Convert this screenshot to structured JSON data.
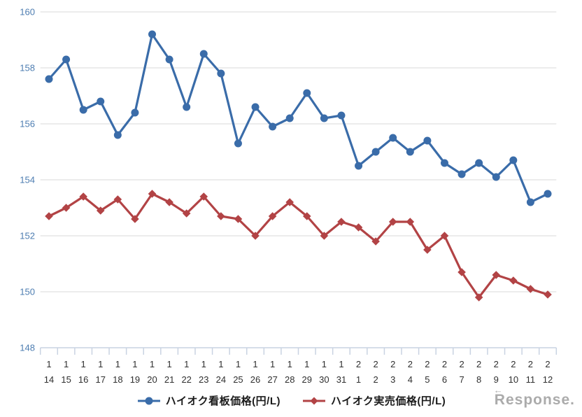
{
  "watermark": {
    "text": "Response.",
    "arrow_glyph": "←",
    "color": "#ababab"
  },
  "chart_data": {
    "type": "line",
    "title": "",
    "xlabel": "",
    "ylabel": "",
    "ylim": [
      148,
      160
    ],
    "y_ticks": [
      148,
      150,
      152,
      154,
      156,
      158,
      160
    ],
    "grid": "horizontal-only",
    "legend_position": "bottom",
    "axis_colors": {
      "y_label": "#4d7db1",
      "x_label": "#2f2f2f",
      "gridline": "#d9d9d9",
      "axis_line": "#c9d3e2"
    },
    "categories": [
      {
        "month": "1",
        "day": "14"
      },
      {
        "month": "1",
        "day": "15"
      },
      {
        "month": "1",
        "day": "16"
      },
      {
        "month": "1",
        "day": "17"
      },
      {
        "month": "1",
        "day": "18"
      },
      {
        "month": "1",
        "day": "19"
      },
      {
        "month": "1",
        "day": "20"
      },
      {
        "month": "1",
        "day": "21"
      },
      {
        "month": "1",
        "day": "22"
      },
      {
        "month": "1",
        "day": "23"
      },
      {
        "month": "1",
        "day": "24"
      },
      {
        "month": "1",
        "day": "25"
      },
      {
        "month": "1",
        "day": "26"
      },
      {
        "month": "1",
        "day": "27"
      },
      {
        "month": "1",
        "day": "28"
      },
      {
        "month": "1",
        "day": "29"
      },
      {
        "month": "1",
        "day": "30"
      },
      {
        "month": "1",
        "day": "31"
      },
      {
        "month": "2",
        "day": "1"
      },
      {
        "month": "2",
        "day": "2"
      },
      {
        "month": "2",
        "day": "3"
      },
      {
        "month": "2",
        "day": "4"
      },
      {
        "month": "2",
        "day": "5"
      },
      {
        "month": "2",
        "day": "6"
      },
      {
        "month": "2",
        "day": "7"
      },
      {
        "month": "2",
        "day": "8"
      },
      {
        "month": "2",
        "day": "9"
      },
      {
        "month": "2",
        "day": "10"
      },
      {
        "month": "2",
        "day": "11"
      },
      {
        "month": "2",
        "day": "12"
      }
    ],
    "series": [
      {
        "name": "ハイオク看板価格(円/L)",
        "marker": "circle",
        "color": "#3a6ca9",
        "values": [
          157.6,
          158.3,
          156.5,
          156.8,
          155.6,
          156.4,
          159.2,
          158.3,
          156.6,
          158.5,
          157.8,
          155.3,
          156.6,
          155.9,
          156.2,
          157.1,
          156.2,
          156.3,
          154.5,
          155.0,
          155.5,
          155.0,
          155.4,
          154.6,
          154.2,
          154.6,
          154.1,
          154.7,
          153.2,
          153.5
        ]
      },
      {
        "name": "ハイオク実売価格(円/L)",
        "marker": "diamond",
        "color": "#b24345",
        "values": [
          152.7,
          153.0,
          153.4,
          152.9,
          153.3,
          152.6,
          153.5,
          153.2,
          152.8,
          153.4,
          152.7,
          152.6,
          152.0,
          152.7,
          153.2,
          152.7,
          152.0,
          152.5,
          152.3,
          151.8,
          152.5,
          152.5,
          151.5,
          152.0,
          150.7,
          149.8,
          150.6,
          150.4,
          150.1,
          149.9
        ]
      }
    ]
  }
}
